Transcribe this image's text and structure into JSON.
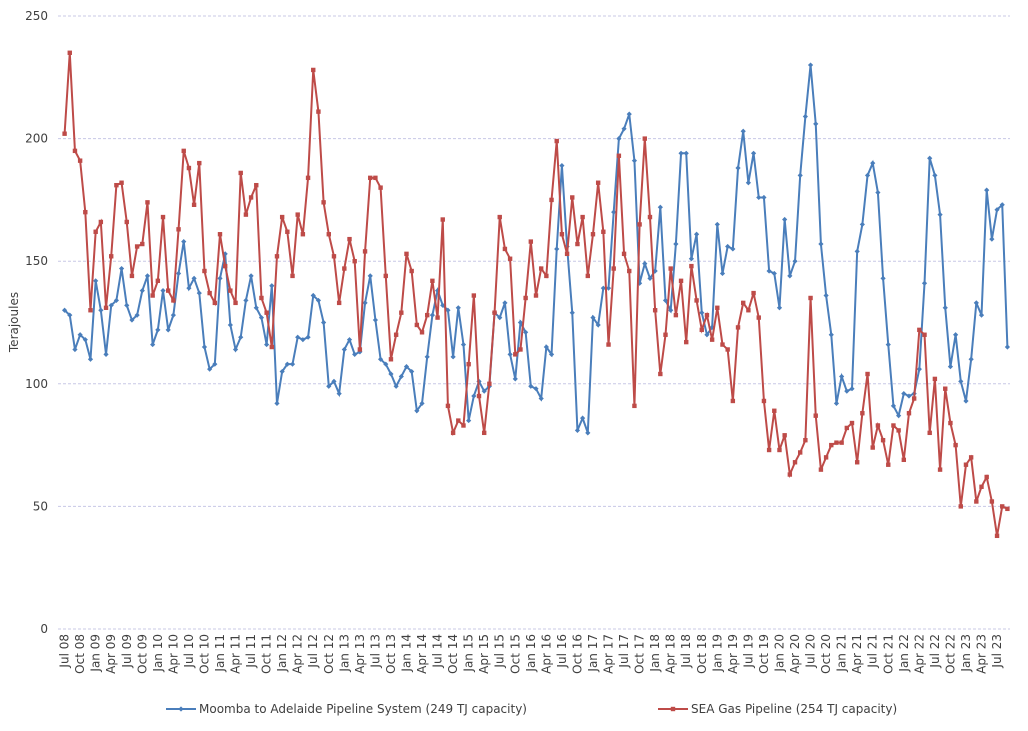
{
  "chart_data": {
    "type": "line",
    "y_label": "Terajoules",
    "categories": [
      "Jul 08",
      null,
      null,
      "Oct 08",
      null,
      null,
      "Jan 09",
      null,
      null,
      "Apr 09",
      null,
      null,
      "Jul 09",
      null,
      null,
      "Oct 09",
      null,
      null,
      "Jan 10",
      null,
      null,
      "Apr 10",
      null,
      null,
      "Jul 10",
      null,
      null,
      "Oct 10",
      null,
      null,
      "Jan 11",
      null,
      null,
      "Apr 11",
      null,
      null,
      "Jul 11",
      null,
      null,
      "Oct 11",
      null,
      null,
      "Jan 12",
      null,
      null,
      "Apr 12",
      null,
      null,
      "Jul 12",
      null,
      null,
      "Oct 12",
      null,
      null,
      "Jan 13",
      null,
      null,
      "Apr 13",
      null,
      null,
      "Jul 13",
      null,
      null,
      "Oct 13",
      null,
      null,
      "Jan 14",
      null,
      null,
      "Apr 14",
      null,
      null,
      "Jul 14",
      null,
      null,
      "Oct 14",
      null,
      null,
      "Jan 15",
      null,
      null,
      "Apr 15",
      null,
      null,
      "Jul 15",
      null,
      null,
      "Oct 15",
      null,
      null,
      "Jan 16",
      null,
      null,
      "Apr 16",
      null,
      null,
      "Jul 16",
      null,
      null,
      "Oct 16",
      null,
      null,
      "Jan 17",
      null,
      null,
      "Apr 17",
      null,
      null,
      "Jul 17",
      null,
      null,
      "Oct 17",
      null,
      null,
      "Jan 18",
      null,
      null,
      "Apr 18",
      null,
      null,
      "Jul 18",
      null,
      null,
      "Oct 18",
      null,
      null,
      "Jan 19",
      null,
      null,
      "Apr 19",
      null,
      null,
      "Jul 19",
      null,
      null,
      "Oct 19",
      null,
      null,
      "Jan 20",
      null,
      null,
      "Apr 20",
      null,
      null,
      "Jul 20",
      null,
      null,
      "Oct 20",
      null,
      null,
      "Jan 21",
      null,
      null,
      "Apr 21",
      null,
      null,
      "Jul 21",
      null,
      null,
      "Oct 21",
      null,
      null,
      "Jan 22",
      null,
      null,
      "Apr 22",
      null,
      null,
      "Jul 22",
      null,
      null,
      "Oct 22",
      null,
      null,
      "Jan 23",
      null,
      null,
      "Apr 23",
      null,
      null,
      "Jul 23",
      null,
      null
    ],
    "series": [
      {
        "name": "Moomba to Adelaide Pipeline System (249 TJ capacity)",
        "color": "#4a7ebb",
        "marker": "diamond",
        "values": [
          130,
          128,
          114,
          120,
          118,
          110,
          142,
          130,
          112,
          132,
          134,
          147,
          132,
          126,
          128,
          138,
          144,
          116,
          122,
          138,
          122,
          128,
          145,
          158,
          139,
          143,
          137,
          115,
          106,
          108,
          143,
          153,
          124,
          114,
          119,
          134,
          144,
          131,
          127,
          116,
          140,
          92,
          105,
          108,
          108,
          119,
          118,
          119,
          136,
          134,
          125,
          99,
          101,
          96,
          114,
          118,
          112,
          113,
          133,
          144,
          126,
          110,
          108,
          104,
          99,
          103,
          107,
          105,
          89,
          92,
          111,
          128,
          138,
          132,
          130,
          111,
          131,
          116,
          85,
          95,
          101,
          97,
          99,
          129,
          127,
          133,
          112,
          102,
          125,
          121,
          99,
          98,
          94,
          115,
          112,
          155,
          189,
          156,
          129,
          81,
          86,
          80,
          127,
          124,
          139,
          139,
          170,
          200,
          204,
          210,
          191,
          141,
          149,
          143,
          146,
          172,
          134,
          130,
          157,
          194,
          194,
          151,
          161,
          129,
          120,
          123,
          165,
          145,
          156,
          155,
          188,
          203,
          182,
          194,
          176,
          176,
          146,
          145,
          131,
          167,
          144,
          150,
          185,
          209,
          230,
          206,
          157,
          136,
          120,
          92,
          103,
          97,
          98,
          154,
          165,
          185,
          190,
          178,
          143,
          116,
          91,
          87,
          96,
          95,
          96,
          106,
          141,
          192,
          185,
          169,
          131,
          107,
          120,
          101,
          93,
          110,
          133,
          128,
          179,
          159,
          171,
          173,
          115
        ]
      },
      {
        "name": "SEA Gas Pipeline (254 TJ capacity)",
        "color": "#be4b48",
        "marker": "square",
        "values": [
          202,
          235,
          195,
          191,
          170,
          130,
          162,
          166,
          131,
          152,
          181,
          182,
          166,
          144,
          156,
          157,
          174,
          136,
          142,
          168,
          138,
          134,
          163,
          195,
          188,
          173,
          190,
          146,
          137,
          133,
          161,
          148,
          138,
          133,
          186,
          169,
          176,
          181,
          135,
          129,
          115,
          152,
          168,
          162,
          144,
          169,
          161,
          184,
          228,
          211,
          174,
          161,
          152,
          133,
          147,
          159,
          150,
          114,
          154,
          184,
          184,
          180,
          144,
          110,
          120,
          129,
          153,
          146,
          124,
          121,
          128,
          142,
          127,
          167,
          91,
          80,
          85,
          83,
          108,
          136,
          95,
          80,
          100,
          129,
          168,
          155,
          151,
          112,
          114,
          135,
          158,
          136,
          147,
          144,
          175,
          199,
          161,
          153,
          176,
          157,
          168,
          144,
          161,
          182,
          162,
          116,
          147,
          193,
          153,
          146,
          91,
          165,
          200,
          168,
          130,
          104,
          120,
          147,
          128,
          142,
          117,
          148,
          134,
          122,
          128,
          118,
          131,
          116,
          114,
          93,
          123,
          133,
          130,
          137,
          127,
          93,
          73,
          89,
          73,
          79,
          63,
          68,
          72,
          77,
          135,
          87,
          65,
          70,
          75,
          76,
          76,
          82,
          84,
          68,
          88,
          104,
          74,
          83,
          77,
          67,
          83,
          81,
          69,
          88,
          94,
          122,
          120,
          80,
          102,
          65,
          98,
          84,
          75,
          50,
          67,
          70,
          52,
          58,
          62,
          52,
          38,
          50,
          49
        ]
      }
    ],
    "ylim": [
      0,
      250
    ],
    "yticks": [
      0,
      50,
      100,
      150,
      200,
      250
    ],
    "grid": true,
    "legend": "bottom"
  }
}
